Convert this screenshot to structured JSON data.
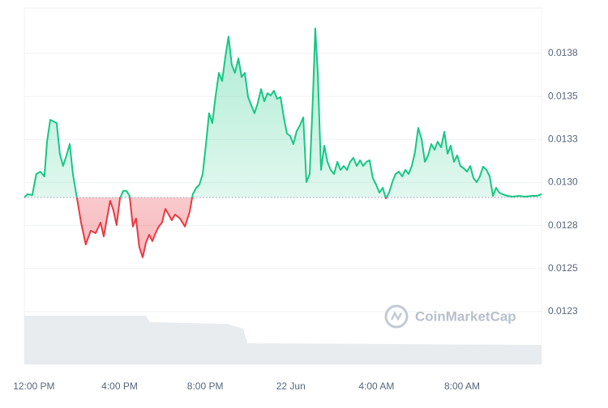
{
  "chart_data": {
    "type": "line",
    "watermark": "CoinMarketCap",
    "series": [
      {
        "color": "#16c784",
        "below_color": "#ea3943",
        "x": [
          11.55,
          11.7,
          11.92,
          12.11,
          12.3,
          12.49,
          12.61,
          12.76,
          12.91,
          13.06,
          13.21,
          13.36,
          13.52,
          13.67,
          13.82,
          14.01,
          14.2,
          14.42,
          14.65,
          14.88,
          15.11,
          15.26,
          15.41,
          15.56,
          15.71,
          15.86,
          16.02,
          16.17,
          16.32,
          16.47,
          16.62,
          16.77,
          16.92,
          17.08,
          17.23,
          17.38,
          17.53,
          17.68,
          17.83,
          17.98,
          18.14,
          18.29,
          18.44,
          18.59,
          18.82,
          19.05,
          19.27,
          19.42,
          19.58,
          19.73,
          19.88,
          20.03,
          20.18,
          20.33,
          20.48,
          20.64,
          20.79,
          20.94,
          21.09,
          21.24,
          21.39,
          21.55,
          21.7,
          21.85,
          22.0,
          22.15,
          22.3,
          22.45,
          22.61,
          22.76,
          22.91,
          23.06,
          23.21,
          23.36,
          23.52,
          23.67,
          23.82,
          23.97,
          24.12,
          24.27,
          24.42,
          24.58,
          24.73,
          24.88,
          25.03,
          25.14,
          25.26,
          25.41,
          25.56,
          25.71,
          25.86,
          26.02,
          26.17,
          26.32,
          26.47,
          26.62,
          26.77,
          26.92,
          27.08,
          27.23,
          27.38,
          27.53,
          27.68,
          27.83,
          27.98,
          28.14,
          28.29,
          28.44,
          28.59,
          28.74,
          28.89,
          29.05,
          29.2,
          29.35,
          29.5,
          29.65,
          29.8,
          29.95,
          30.11,
          30.26,
          30.41,
          30.56,
          30.71,
          30.86,
          31.02,
          31.17,
          31.32,
          31.47,
          31.62,
          31.77,
          31.92,
          32.08,
          32.23,
          32.38,
          32.53,
          32.68,
          32.83,
          32.98,
          33.14,
          33.29,
          33.44,
          33.59,
          33.74,
          33.89,
          34.12,
          34.35,
          34.65,
          34.95,
          35.26,
          35.48,
          35.71
        ],
        "values": [
          0.012913,
          0.012932,
          0.012927,
          0.013049,
          0.013063,
          0.013035,
          0.013237,
          0.013364,
          0.013355,
          0.013345,
          0.013167,
          0.013096,
          0.013157,
          0.013223,
          0.013049,
          0.012908,
          0.012767,
          0.01264,
          0.01272,
          0.012706,
          0.012767,
          0.012687,
          0.012791,
          0.012894,
          0.012838,
          0.012753,
          0.012908,
          0.012951,
          0.012951,
          0.012922,
          0.012744,
          0.012791,
          0.012626,
          0.012565,
          0.01265,
          0.012697,
          0.012659,
          0.012706,
          0.012744,
          0.012767,
          0.012847,
          0.012814,
          0.012781,
          0.012814,
          0.012791,
          0.012744,
          0.012828,
          0.012932,
          0.012969,
          0.012988,
          0.013049,
          0.013214,
          0.013402,
          0.013345,
          0.013496,
          0.013637,
          0.01359,
          0.013731,
          0.013848,
          0.013684,
          0.013637,
          0.013721,
          0.013613,
          0.013637,
          0.013496,
          0.013449,
          0.013402,
          0.013458,
          0.013543,
          0.013472,
          0.013519,
          0.013505,
          0.013533,
          0.013486,
          0.013496,
          0.013378,
          0.013284,
          0.01327,
          0.013223,
          0.013298,
          0.013331,
          0.013378,
          0.013002,
          0.013049,
          0.013496,
          0.013895,
          0.013637,
          0.013073,
          0.013214,
          0.01312,
          0.013073,
          0.013049,
          0.01312,
          0.013073,
          0.013096,
          0.013073,
          0.01312,
          0.013143,
          0.013096,
          0.013129,
          0.013096,
          0.01312,
          0.013129,
          0.013026,
          0.012988,
          0.012941,
          0.012969,
          0.012908,
          0.012941,
          0.013002,
          0.013049,
          0.013063,
          0.013035,
          0.013073,
          0.013049,
          0.013096,
          0.013176,
          0.013317,
          0.013251,
          0.01312,
          0.013157,
          0.013223,
          0.01319,
          0.013237,
          0.013204,
          0.013294,
          0.013167,
          0.013214,
          0.01312,
          0.013157,
          0.013096,
          0.013082,
          0.013063,
          0.013096,
          0.013026,
          0.013002,
          0.013035,
          0.013092,
          0.013073,
          0.013035,
          0.012922,
          0.012969,
          0.012941,
          0.012932,
          0.012922,
          0.012918,
          0.012922,
          0.012918,
          0.012922,
          0.012922,
          0.012932
        ]
      }
    ],
    "xlim": [
      11.55,
      35.71
    ],
    "xticks": [
      {
        "value": 12,
        "label": "12:00 PM"
      },
      {
        "value": 16,
        "label": "4:00 PM"
      },
      {
        "value": 20,
        "label": "8:00 PM"
      },
      {
        "value": 24,
        "label": "22 Jun"
      },
      {
        "value": 28,
        "label": "4:00 AM"
      },
      {
        "value": 32,
        "label": "8:00 AM"
      }
    ],
    "ylim": [
      0.011944,
      0.014013
    ],
    "yticks": [
      {
        "value": 0.01375,
        "label": "0.0138"
      },
      0.0135,
      {
        "value": 0.01325,
        "label": "0.0133"
      },
      {
        "value": 0.013,
        "label": "0.0130"
      },
      {
        "value": 0.01275,
        "label": "0.0128"
      },
      0.0125,
      {
        "value": 0.01225,
        "label": "0.0123"
      }
    ],
    "grid": true
  }
}
